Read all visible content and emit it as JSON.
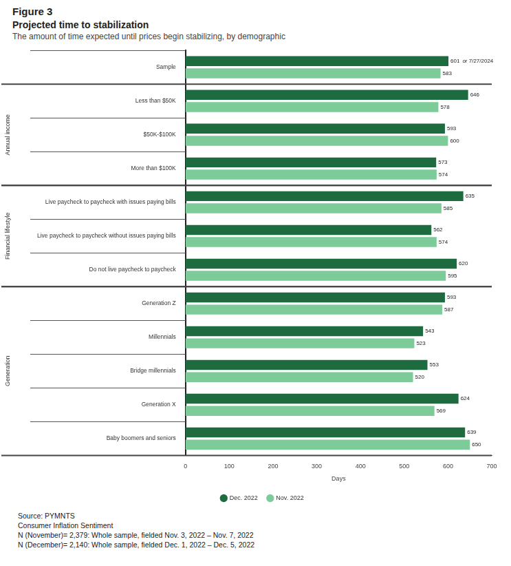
{
  "chart_data": {
    "type": "bar",
    "orientation": "horizontal",
    "title": "Figure 3",
    "subtitle": "Projected time to stabilization",
    "description": "The amount of time expected until prices begin stabilizing, by demographic",
    "x_label": "Days",
    "categories": [
      "Sample",
      "Less than $50K",
      "$50K-$100K",
      "More than $100K",
      "Live paycheck to paycheck with issues paying bills",
      "Live paycheck to paycheck without issues paying bills",
      "Do not live paycheck to paycheck",
      "Generation Z",
      "Millennials",
      "Bridge millennials",
      "Generation X",
      "Baby boomers and seniors"
    ],
    "groups": [
      {
        "label": "Annual income",
        "categories": [
          "Less than $50K",
          "$50K-$100K",
          "More than $100K"
        ]
      },
      {
        "label": "Financial lifestyle",
        "categories": [
          "Live paycheck to paycheck with issues paying bills",
          "Live paycheck to paycheck without issues paying bills",
          "Do not live paycheck to paycheck"
        ]
      },
      {
        "label": "Generation",
        "categories": [
          "Generation Z",
          "Millennials",
          "Bridge millennials",
          "Generation X",
          "Baby boomers and seniors"
        ]
      }
    ],
    "series": [
      {
        "name": "Dec. 2022",
        "color": "#1d6b3e",
        "values": [
          601,
          646,
          593,
          573,
          635,
          562,
          620,
          593,
          543,
          553,
          624,
          639
        ]
      },
      {
        "name": "Nov. 2022",
        "color": "#7ecb9a",
        "values": [
          583,
          578,
          600,
          574,
          585,
          574,
          595,
          587,
          523,
          520,
          569,
          650
        ]
      }
    ],
    "annotations": [
      {
        "text": "or 7/27/2024",
        "category": "Sample",
        "series": "Dec. 2022"
      }
    ],
    "xlim": [
      0,
      700
    ],
    "xticks": [
      0,
      100,
      200,
      300,
      400,
      500,
      600,
      700
    ],
    "grid": false,
    "data_labels": true,
    "legend": "bottom",
    "notes": [
      "Source: PYMNTS",
      "Consumer Inflation Sentiment",
      "N (November)= 2,379: Whole sample, fielded Nov. 3, 2022 – Nov. 7, 2022",
      "N (December)= 2,140: Whole sample, fielded Dec. 1, 2022 – Dec. 5, 2022"
    ]
  }
}
